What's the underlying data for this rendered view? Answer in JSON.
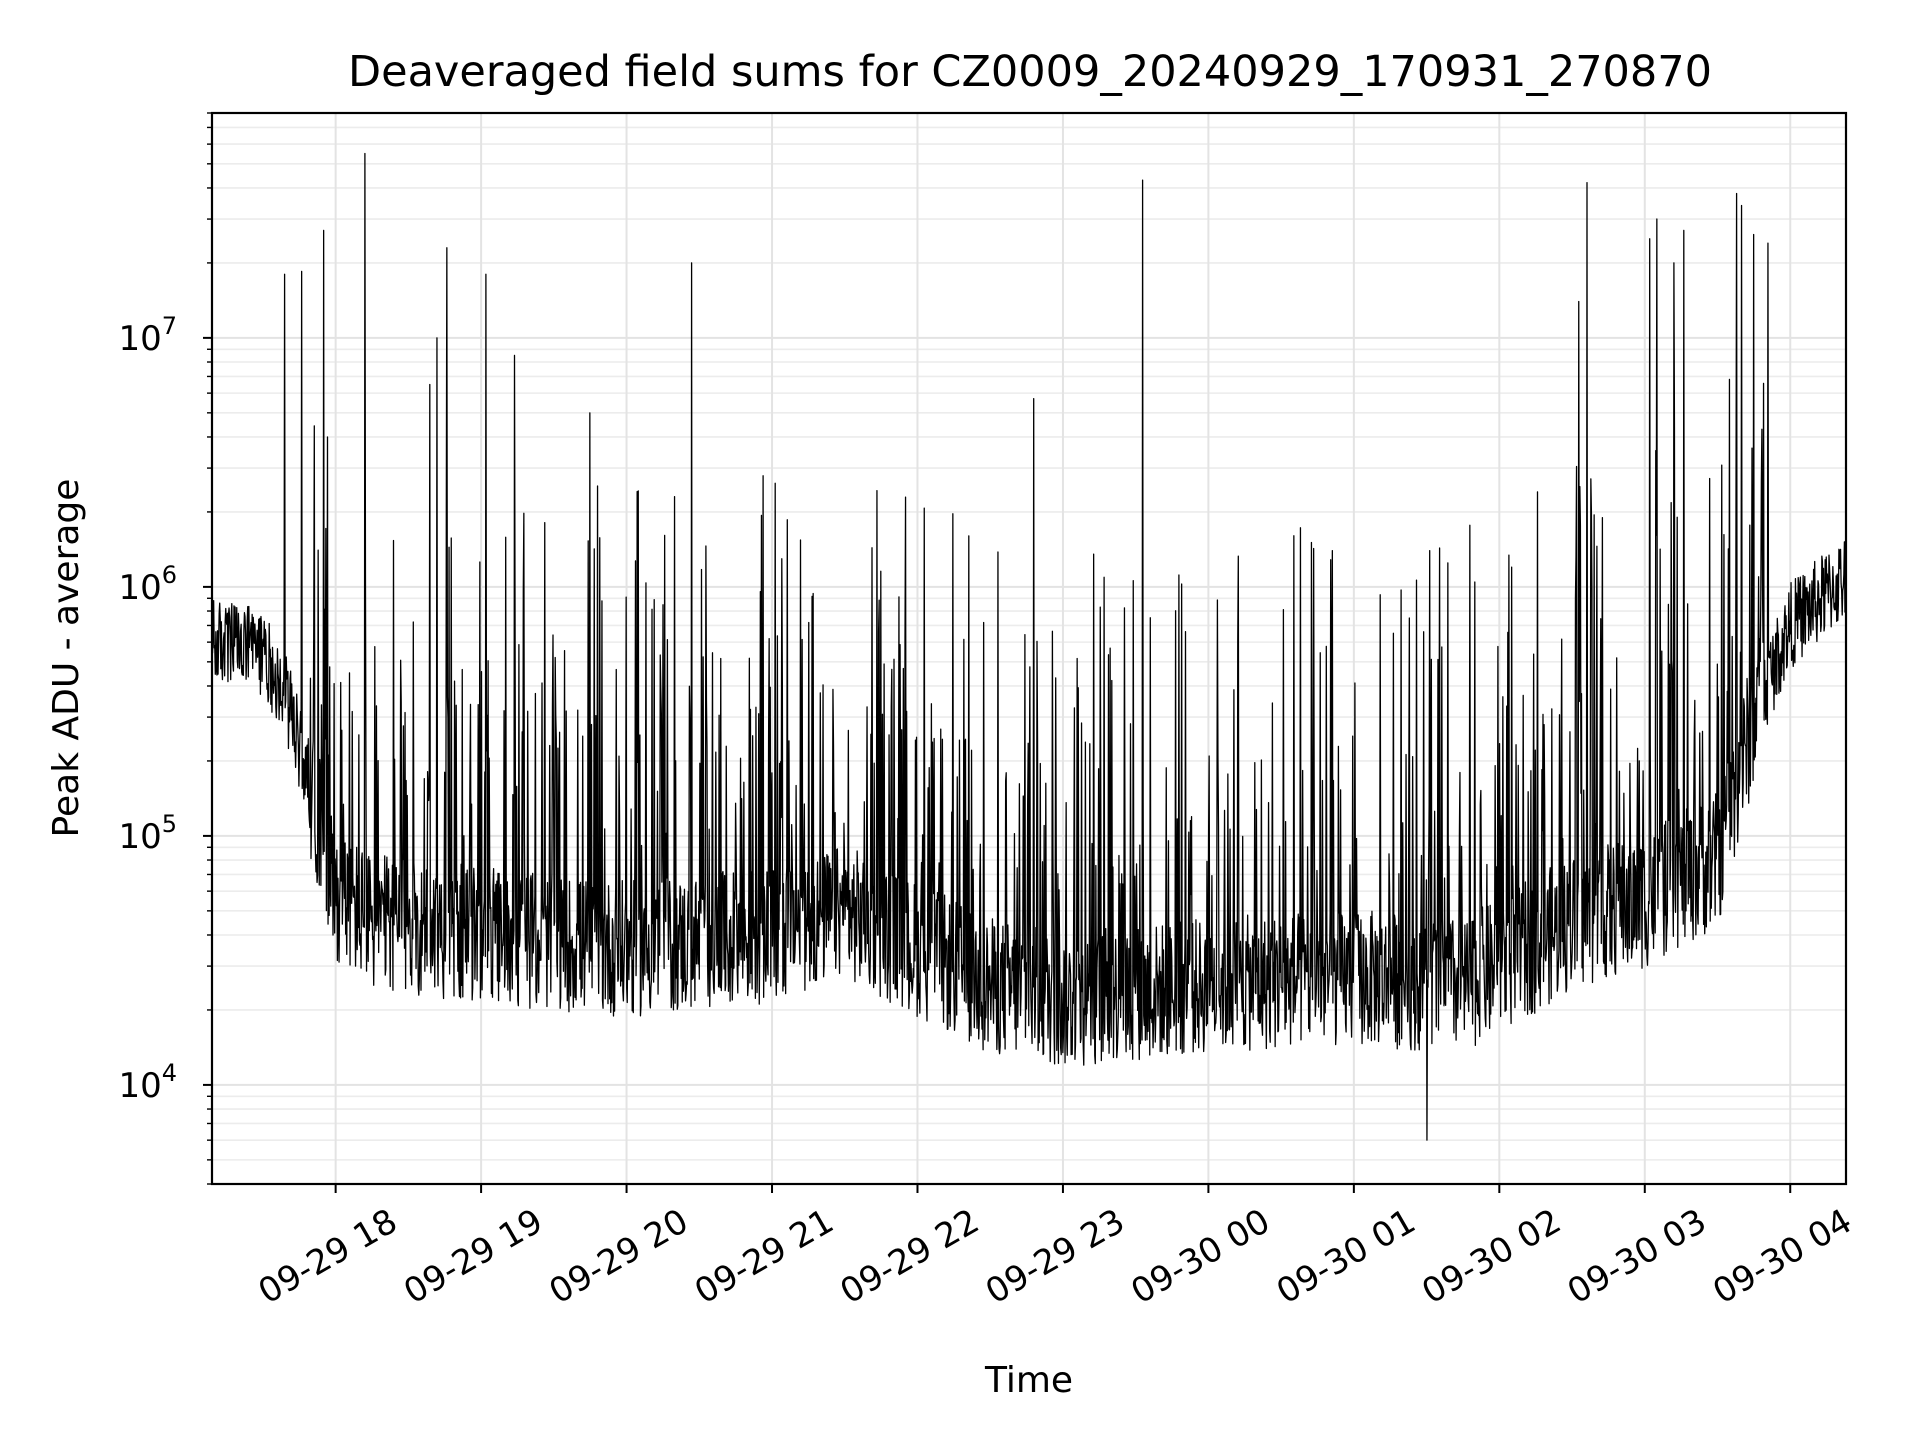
{
  "chart_data": {
    "type": "line",
    "title": "Deaveraged field sums for CZ0009_20240929_170931_270870",
    "xlabel": "Time",
    "ylabel": "Peak ADU - average",
    "xscale": "time",
    "yscale": "log",
    "xlim": [
      "2024-09-29 17:09",
      "2024-09-30 04:23"
    ],
    "ylim": [
      4000,
      80000000
    ],
    "grid": "on (major and minor)",
    "x_ticks": [
      {
        "value": "2024-09-29 18:00",
        "label": "09-29 18"
      },
      {
        "value": "2024-09-29 19:00",
        "label": "09-29 19"
      },
      {
        "value": "2024-09-29 20:00",
        "label": "09-29 20"
      },
      {
        "value": "2024-09-29 21:00",
        "label": "09-29 21"
      },
      {
        "value": "2024-09-29 22:00",
        "label": "09-29 22"
      },
      {
        "value": "2024-09-29 23:00",
        "label": "09-29 23"
      },
      {
        "value": "2024-09-30 00:00",
        "label": "09-30 00"
      },
      {
        "value": "2024-09-30 01:00",
        "label": "09-30 01"
      },
      {
        "value": "2024-09-30 02:00",
        "label": "09-30 02"
      },
      {
        "value": "2024-09-30 03:00",
        "label": "09-30 03"
      },
      {
        "value": "2024-09-30 04:00",
        "label": "09-30 04"
      }
    ],
    "y_ticks": [
      {
        "value": 10000,
        "base": "10",
        "exp": "4"
      },
      {
        "value": 100000,
        "base": "10",
        "exp": "5"
      },
      {
        "value": 1000000,
        "base": "10",
        "exp": "6"
      },
      {
        "value": 10000000,
        "base": "10",
        "exp": "7"
      }
    ],
    "series": [
      {
        "color": "#000000",
        "baseline_points": [
          {
            "x": "2024-09-29 17:09",
            "y": 600000
          },
          {
            "x": "2024-09-29 17:30",
            "y": 550000
          },
          {
            "x": "2024-09-29 17:40",
            "y": 350000
          },
          {
            "x": "2024-09-29 17:50",
            "y": 150000
          },
          {
            "x": "2024-09-29 18:00",
            "y": 60000
          },
          {
            "x": "2024-09-29 18:15",
            "y": 45000
          },
          {
            "x": "2024-09-29 19:00",
            "y": 40000
          },
          {
            "x": "2024-09-29 20:00",
            "y": 35000
          },
          {
            "x": "2024-09-29 21:00",
            "y": 40000
          },
          {
            "x": "2024-09-29 21:30",
            "y": 50000
          },
          {
            "x": "2024-09-29 22:00",
            "y": 35000
          },
          {
            "x": "2024-09-29 22:30",
            "y": 25000
          },
          {
            "x": "2024-09-29 23:00",
            "y": 22000
          },
          {
            "x": "2024-09-30 00:00",
            "y": 25000
          },
          {
            "x": "2024-09-30 01:00",
            "y": 27000
          },
          {
            "x": "2024-09-30 01:45",
            "y": 25000
          },
          {
            "x": "2024-09-30 02:00",
            "y": 30000
          },
          {
            "x": "2024-09-30 02:30",
            "y": 45000
          },
          {
            "x": "2024-09-30 03:00",
            "y": 55000
          },
          {
            "x": "2024-09-30 03:30",
            "y": 80000
          },
          {
            "x": "2024-09-30 03:45",
            "y": 300000
          },
          {
            "x": "2024-09-30 04:00",
            "y": 700000
          },
          {
            "x": "2024-09-30 04:23",
            "y": 1100000
          }
        ],
        "spikes": [
          {
            "x": "2024-09-29 17:39",
            "y": 18000000
          },
          {
            "x": "2024-09-29 17:46",
            "y": 18500000
          },
          {
            "x": "2024-09-29 17:55",
            "y": 27000000
          },
          {
            "x": "2024-09-29 17:57",
            "y": 4000000
          },
          {
            "x": "2024-09-29 18:12",
            "y": 55000000
          },
          {
            "x": "2024-09-29 18:39",
            "y": 6500000
          },
          {
            "x": "2024-09-29 18:42",
            "y": 10000000
          },
          {
            "x": "2024-09-29 18:46",
            "y": 23000000
          },
          {
            "x": "2024-09-29 19:02",
            "y": 18000000
          },
          {
            "x": "2024-09-29 19:14",
            "y": 8500000
          },
          {
            "x": "2024-09-29 19:45",
            "y": 5000000
          },
          {
            "x": "2024-09-29 20:27",
            "y": 20000000
          },
          {
            "x": "2024-09-29 22:48",
            "y": 5700000
          },
          {
            "x": "2024-09-29 23:33",
            "y": 43000000
          },
          {
            "x": "2024-09-30 02:33",
            "y": 14000000
          },
          {
            "x": "2024-09-30 02:36",
            "y": 42000000
          },
          {
            "x": "2024-09-30 03:02",
            "y": 25000000
          },
          {
            "x": "2024-09-30 03:05",
            "y": 30000000
          },
          {
            "x": "2024-09-30 03:12",
            "y": 20000000
          },
          {
            "x": "2024-09-30 03:16",
            "y": 27000000
          },
          {
            "x": "2024-09-30 03:38",
            "y": 38000000
          },
          {
            "x": "2024-09-30 03:40",
            "y": 34000000
          },
          {
            "x": "2024-09-30 03:45",
            "y": 26000000
          },
          {
            "x": "2024-09-30 03:51",
            "y": 24000000
          }
        ],
        "minimum": {
          "x": "2024-09-30 01:30",
          "y": 6000
        }
      }
    ]
  }
}
